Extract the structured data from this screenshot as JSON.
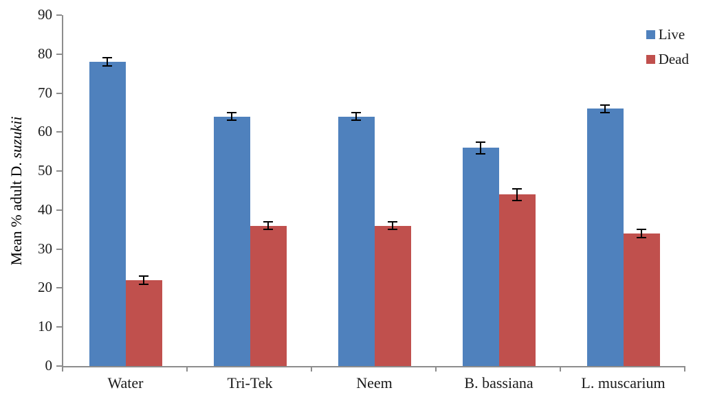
{
  "chart_data": {
    "type": "bar",
    "title": "",
    "xlabel": "",
    "ylabel": "Mean % adult D. suzukii",
    "ylabel_regular": "Mean % adult D. ",
    "ylabel_italic": "suzukii",
    "categories": [
      "Water",
      "Tri-Tek",
      "Neem",
      "B. bassiana",
      "L. muscarium"
    ],
    "series": [
      {
        "name": "Live",
        "color": "#4F81BD",
        "values": [
          78,
          64,
          64,
          56,
          66
        ],
        "errors": [
          1,
          1,
          1,
          1.5,
          1
        ]
      },
      {
        "name": "Dead",
        "color": "#C0504D",
        "values": [
          22,
          36,
          36,
          44,
          34
        ],
        "errors": [
          1,
          1,
          1,
          1.5,
          1
        ]
      }
    ],
    "ylim": [
      0,
      90
    ],
    "yticks": [
      0,
      10,
      20,
      30,
      40,
      50,
      60,
      70,
      80,
      90
    ],
    "grid": false,
    "error_bars": true,
    "legend_position": "top-right"
  },
  "colors": {
    "axis": "#8C8C8C",
    "text": "#1A1A1A",
    "error_bar": "#000000",
    "background": "#FFFFFF"
  }
}
